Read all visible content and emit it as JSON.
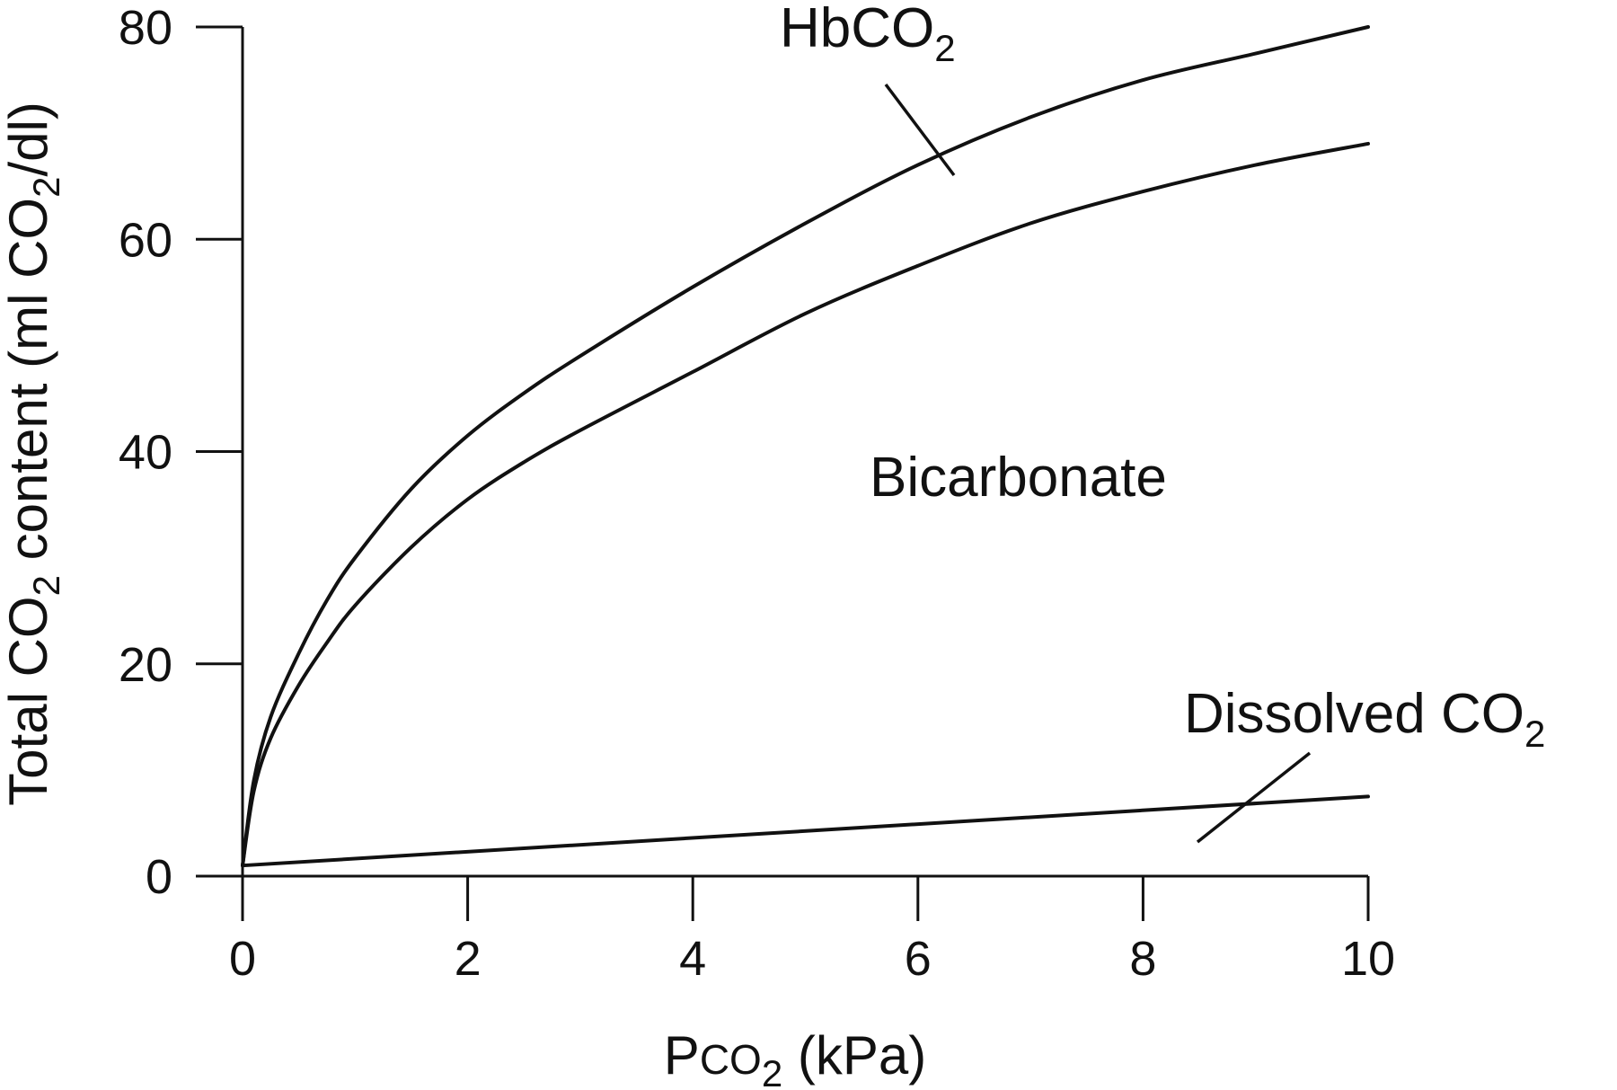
{
  "chart_data": {
    "type": "line",
    "x_ticks": [
      "0",
      "2",
      "4",
      "6",
      "8",
      "10"
    ],
    "y_ticks": [
      "0",
      "20",
      "40",
      "60",
      "80"
    ],
    "xlim": [
      0,
      10
    ],
    "ylim": [
      0,
      80
    ],
    "xlabel": {
      "main": "P",
      "sub_small": "CO",
      "subscript": "2",
      "unit": " (kPa)"
    },
    "ylabel": {
      "pre": "Total CO",
      "subscript": "2",
      "mid": " content (ml CO",
      "subscript2": "2",
      "post": "/dl)"
    },
    "grid": false,
    "series": [
      {
        "name": "HbCO2",
        "x": [
          0,
          0.1,
          0.25,
          0.5,
          0.75,
          1,
          1.5,
          2,
          2.5,
          3,
          4,
          5,
          6,
          7,
          8,
          9,
          10
        ],
        "y": [
          1,
          9,
          15,
          21,
          26,
          30,
          36.5,
          41.5,
          45.5,
          49,
          55.5,
          61.5,
          67,
          71.5,
          75,
          77.5,
          80
        ]
      },
      {
        "name": "Bicarbonate",
        "x": [
          0,
          0.1,
          0.25,
          0.5,
          0.75,
          1,
          1.5,
          2,
          2.5,
          3,
          4,
          5,
          6,
          7,
          8,
          9,
          10
        ],
        "y": [
          1,
          8,
          13,
          18,
          22,
          25.5,
          31,
          35.5,
          39,
          42,
          47.5,
          53,
          57.5,
          61.5,
          64.5,
          67,
          69
        ]
      },
      {
        "name": "Dissolved CO2",
        "x": [
          0,
          10
        ],
        "y": [
          1,
          7.5
        ]
      }
    ],
    "annotations": {
      "hbco2": {
        "text": "HbCO",
        "subscript": "2"
      },
      "bicarbonate": {
        "text": "Bicarbonate"
      },
      "dissolved": {
        "text": "Dissolved CO",
        "subscript": "2"
      }
    }
  }
}
